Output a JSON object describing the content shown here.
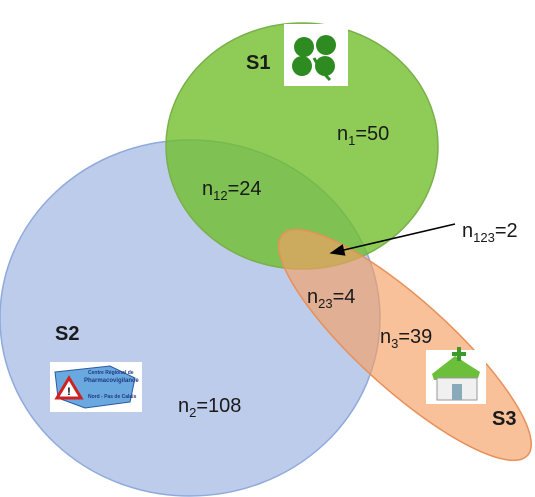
{
  "sets": [
    {
      "label": "S1"
    },
    {
      "label": "S2",
      "logo_text": [
        "Centre Régional de",
        "Pharmacovigilance",
        "Nord - Pas de Calais"
      ]
    },
    {
      "label": "S3"
    }
  ],
  "regions": [
    {
      "symbol": "n",
      "subscript": "1",
      "value_text": "=50"
    },
    {
      "symbol": "n",
      "subscript": "12",
      "value_text": "=24"
    },
    {
      "symbol": "n",
      "subscript": "123",
      "value_text": "=2"
    },
    {
      "symbol": "n",
      "subscript": "23",
      "value_text": "=4"
    },
    {
      "symbol": "n",
      "subscript": "3",
      "value_text": "=39"
    },
    {
      "symbol": "n",
      "subscript": "2",
      "value_text": "=108"
    }
  ]
}
